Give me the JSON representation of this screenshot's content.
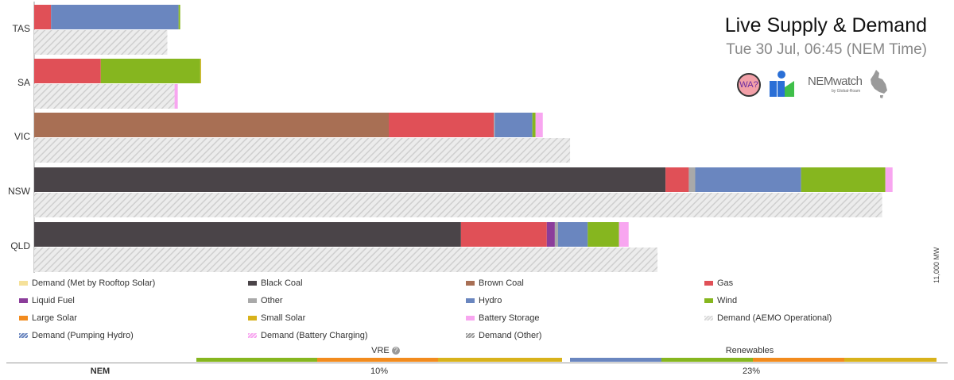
{
  "header": {
    "title": "Live Supply & Demand",
    "subtitle": "Tue 30 Jul, 06:45 (NEM Time)"
  },
  "logos": {
    "wa_badge": "WA?",
    "nemwatch_wordmark": "NEMwatch",
    "nemwatch_byline": "by Global-Roam",
    "wa_icon": "wa-question-icon",
    "bars_icon": "bar-logo-icon",
    "map_icon": "australia-map-icon"
  },
  "axis_note": "11,000 MW",
  "colors": {
    "black_coal": "#4a4448",
    "brown_coal": "#a86f54",
    "gas": "#e05057",
    "liquid_fuel": "#8b3d9a",
    "other": "#a9a9a9",
    "hydro": "#6a86bf",
    "wind": "#86b61f",
    "large_solar": "#f28b1e",
    "small_solar": "#d8b21b",
    "battery_storage": "#f8a6f0",
    "rooftop_demand": "#f5e19a",
    "operational_demand": "#d9d9d9",
    "pumping_hydro_demand": "#6a86bf",
    "battery_charging_demand": "#f8a6f0",
    "other_demand": "#999999"
  },
  "chart_data": {
    "type": "bar",
    "orientation": "horizontal",
    "stacked": true,
    "xlim": [
      0,
      11000
    ],
    "unit": "MW",
    "categories": [
      "TAS",
      "SA",
      "VIC",
      "NSW",
      "QLD"
    ],
    "supply_series": [
      {
        "name": "Black Coal",
        "color_key": "black_coal",
        "values": [
          0,
          0,
          0,
          7870,
          5320
        ]
      },
      {
        "name": "Brown Coal",
        "color_key": "brown_coal",
        "values": [
          0,
          0,
          4420,
          0,
          0
        ]
      },
      {
        "name": "Gas",
        "color_key": "gas",
        "values": [
          210,
          830,
          1310,
          290,
          1070
        ]
      },
      {
        "name": "Liquid Fuel",
        "color_key": "liquid_fuel",
        "values": [
          0,
          0,
          0,
          0,
          100
        ]
      },
      {
        "name": "Other",
        "color_key": "other",
        "values": [
          0,
          0,
          10,
          80,
          40
        ]
      },
      {
        "name": "Hydro",
        "color_key": "hydro",
        "values": [
          1590,
          0,
          470,
          1320,
          370
        ]
      },
      {
        "name": "Wind",
        "color_key": "wind",
        "values": [
          20,
          1240,
          40,
          1050,
          390
        ]
      },
      {
        "name": "Large Solar",
        "color_key": "large_solar",
        "values": [
          0,
          0,
          0,
          0,
          0
        ]
      },
      {
        "name": "Small Solar",
        "color_key": "small_solar",
        "values": [
          0,
          10,
          0,
          0,
          0
        ]
      },
      {
        "name": "Battery Storage",
        "color_key": "battery_storage",
        "values": [
          0,
          0,
          90,
          90,
          120
        ]
      }
    ],
    "demand_series": [
      {
        "name": "Demand (AEMO Operational)",
        "color_key": "operational_demand",
        "values": [
          1660,
          1750,
          6680,
          10570,
          7770
        ]
      },
      {
        "name": "Demand (Battery Charging)",
        "color_key": "battery_charging_demand",
        "values": [
          0,
          40,
          0,
          0,
          0
        ]
      }
    ],
    "title": "",
    "xlabel": "",
    "ylabel": "",
    "grid": false,
    "legend_position": "bottom"
  },
  "legend": [
    {
      "label": "Demand (Met by Rooftop Solar)",
      "color_key": "rooftop_demand"
    },
    {
      "label": "Black Coal",
      "color_key": "black_coal"
    },
    {
      "label": "Brown Coal",
      "color_key": "brown_coal"
    },
    {
      "label": "Gas",
      "color_key": "gas"
    },
    {
      "label": "Liquid Fuel",
      "color_key": "liquid_fuel"
    },
    {
      "label": "Other",
      "color_key": "other"
    },
    {
      "label": "Hydro",
      "color_key": "hydro"
    },
    {
      "label": "Wind",
      "color_key": "wind"
    },
    {
      "label": "Large Solar",
      "color_key": "large_solar"
    },
    {
      "label": "Small Solar",
      "color_key": "small_solar"
    },
    {
      "label": "Battery Storage",
      "color_key": "battery_storage"
    },
    {
      "label": "Demand (AEMO Operational)",
      "color_key": "operational_demand"
    },
    {
      "label": "Demand (Pumping Hydro)",
      "color_key": "pumping_hydro_demand"
    },
    {
      "label": "Demand (Battery Charging)",
      "color_key": "battery_charging_demand"
    },
    {
      "label": "Demand (Other)",
      "color_key": "other_demand"
    }
  ],
  "summary": {
    "region_label": "NEM",
    "vre_label": "VRE",
    "vre_help_icon": "help-circle-icon",
    "vre_value": "10%",
    "renewables_label": "Renewables",
    "renewables_value": "23%"
  }
}
